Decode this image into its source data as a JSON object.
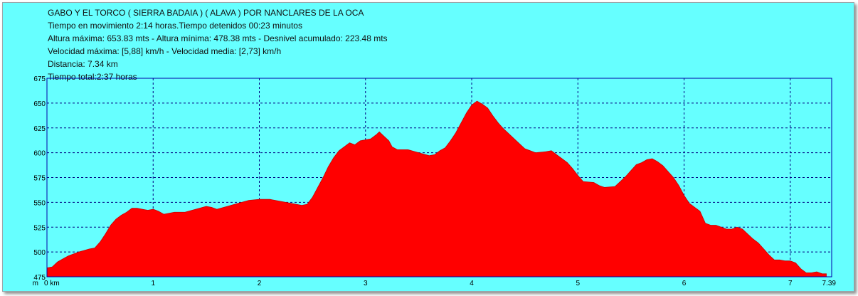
{
  "header": {
    "title": "GABO Y EL TORCO ( SIERRA BADAIA ) ( ALAVA ) POR NANCLARES DE LA OCA",
    "moving_time": "Tiempo en movimiento 2:14 horas.Tiempo detenidos 00:23 minutos",
    "altitude": "Altura máxima: 653.83 mts - Altura mínima: 478.38 mts - Desnivel acumulado: 223.48 mts",
    "speed": "Velocidad máxima: [5,88] km/h - Velocidad media: [2,73] km/h",
    "distance": "Distancia: 7.34 km",
    "total_time": "Tiempo total:2:37 horas"
  },
  "colors": {
    "background": "#66ffff",
    "fill": "#ff0000",
    "grid": "#000080",
    "axis": "#0000aa"
  },
  "chart_data": {
    "type": "area",
    "title": "GABO Y EL TORCO ( SIERRA BADAIA ) ( ALAVA ) POR NANCLARES DE LA OCA",
    "xlabel": "m",
    "ylabel": "",
    "xlim": [
      0,
      7.39
    ],
    "ylim": [
      475,
      675
    ],
    "grid": true,
    "y_ticks": [
      "675",
      "650",
      "625",
      "600",
      "575",
      "550",
      "525",
      "500",
      "475"
    ],
    "x_ticks": [
      {
        "value": 0,
        "label": "0 km"
      },
      {
        "value": 1,
        "label": "1"
      },
      {
        "value": 2,
        "label": "2"
      },
      {
        "value": 3,
        "label": "3"
      },
      {
        "value": 4,
        "label": "4"
      },
      {
        "value": 5,
        "label": "5"
      },
      {
        "value": 6,
        "label": "6"
      },
      {
        "value": 7,
        "label": "7"
      },
      {
        "value": 7.39,
        "label": "7.39"
      }
    ],
    "series": [
      {
        "values": [
          {
            "x": 0.0,
            "y": 484
          },
          {
            "x": 0.05,
            "y": 485
          },
          {
            "x": 0.1,
            "y": 490
          },
          {
            "x": 0.15,
            "y": 493
          },
          {
            "x": 0.2,
            "y": 496
          },
          {
            "x": 0.3,
            "y": 500
          },
          {
            "x": 0.4,
            "y": 503
          },
          {
            "x": 0.45,
            "y": 504
          },
          {
            "x": 0.5,
            "y": 510
          },
          {
            "x": 0.55,
            "y": 518
          },
          {
            "x": 0.6,
            "y": 527
          },
          {
            "x": 0.65,
            "y": 533
          },
          {
            "x": 0.7,
            "y": 537
          },
          {
            "x": 0.75,
            "y": 540
          },
          {
            "x": 0.8,
            "y": 544
          },
          {
            "x": 0.85,
            "y": 544
          },
          {
            "x": 0.9,
            "y": 543
          },
          {
            "x": 0.95,
            "y": 542
          },
          {
            "x": 1.0,
            "y": 543
          },
          {
            "x": 1.05,
            "y": 541
          },
          {
            "x": 1.1,
            "y": 538
          },
          {
            "x": 1.2,
            "y": 540
          },
          {
            "x": 1.3,
            "y": 540
          },
          {
            "x": 1.4,
            "y": 543
          },
          {
            "x": 1.5,
            "y": 546
          },
          {
            "x": 1.55,
            "y": 545
          },
          {
            "x": 1.6,
            "y": 543
          },
          {
            "x": 1.7,
            "y": 546
          },
          {
            "x": 1.8,
            "y": 549
          },
          {
            "x": 1.9,
            "y": 552
          },
          {
            "x": 2.0,
            "y": 553
          },
          {
            "x": 2.1,
            "y": 553
          },
          {
            "x": 2.2,
            "y": 551
          },
          {
            "x": 2.3,
            "y": 549
          },
          {
            "x": 2.4,
            "y": 547
          },
          {
            "x": 2.45,
            "y": 548
          },
          {
            "x": 2.5,
            "y": 555
          },
          {
            "x": 2.55,
            "y": 565
          },
          {
            "x": 2.6,
            "y": 575
          },
          {
            "x": 2.65,
            "y": 586
          },
          {
            "x": 2.7,
            "y": 595
          },
          {
            "x": 2.75,
            "y": 602
          },
          {
            "x": 2.8,
            "y": 606
          },
          {
            "x": 2.85,
            "y": 610
          },
          {
            "x": 2.9,
            "y": 608
          },
          {
            "x": 2.95,
            "y": 612
          },
          {
            "x": 3.0,
            "y": 613
          },
          {
            "x": 3.05,
            "y": 614
          },
          {
            "x": 3.1,
            "y": 618
          },
          {
            "x": 3.13,
            "y": 621
          },
          {
            "x": 3.17,
            "y": 617
          },
          {
            "x": 3.22,
            "y": 612
          },
          {
            "x": 3.25,
            "y": 606
          },
          {
            "x": 3.3,
            "y": 603
          },
          {
            "x": 3.4,
            "y": 603
          },
          {
            "x": 3.5,
            "y": 600
          },
          {
            "x": 3.6,
            "y": 597
          },
          {
            "x": 3.65,
            "y": 598
          },
          {
            "x": 3.7,
            "y": 602
          },
          {
            "x": 3.75,
            "y": 605
          },
          {
            "x": 3.8,
            "y": 612
          },
          {
            "x": 3.85,
            "y": 620
          },
          {
            "x": 3.9,
            "y": 630
          },
          {
            "x": 3.95,
            "y": 640
          },
          {
            "x": 4.0,
            "y": 648
          },
          {
            "x": 4.05,
            "y": 652
          },
          {
            "x": 4.1,
            "y": 649
          },
          {
            "x": 4.15,
            "y": 645
          },
          {
            "x": 4.2,
            "y": 637
          },
          {
            "x": 4.25,
            "y": 630
          },
          {
            "x": 4.3,
            "y": 624
          },
          {
            "x": 4.35,
            "y": 619
          },
          {
            "x": 4.4,
            "y": 614
          },
          {
            "x": 4.45,
            "y": 609
          },
          {
            "x": 4.5,
            "y": 604
          },
          {
            "x": 4.55,
            "y": 602
          },
          {
            "x": 4.6,
            "y": 600
          },
          {
            "x": 4.7,
            "y": 601
          },
          {
            "x": 4.75,
            "y": 602
          },
          {
            "x": 4.8,
            "y": 598
          },
          {
            "x": 4.85,
            "y": 594
          },
          {
            "x": 4.9,
            "y": 590
          },
          {
            "x": 4.95,
            "y": 584
          },
          {
            "x": 5.0,
            "y": 577
          },
          {
            "x": 5.05,
            "y": 571
          },
          {
            "x": 5.15,
            "y": 570
          },
          {
            "x": 5.2,
            "y": 567
          },
          {
            "x": 5.25,
            "y": 565
          },
          {
            "x": 5.35,
            "y": 566
          },
          {
            "x": 5.4,
            "y": 571
          },
          {
            "x": 5.45,
            "y": 576
          },
          {
            "x": 5.5,
            "y": 582
          },
          {
            "x": 5.55,
            "y": 588
          },
          {
            "x": 5.6,
            "y": 590
          },
          {
            "x": 5.65,
            "y": 593
          },
          {
            "x": 5.7,
            "y": 594
          },
          {
            "x": 5.75,
            "y": 591
          },
          {
            "x": 5.8,
            "y": 587
          },
          {
            "x": 5.85,
            "y": 581
          },
          {
            "x": 5.9,
            "y": 575
          },
          {
            "x": 5.95,
            "y": 567
          },
          {
            "x": 6.0,
            "y": 557
          },
          {
            "x": 6.05,
            "y": 549
          },
          {
            "x": 6.1,
            "y": 545
          },
          {
            "x": 6.15,
            "y": 541
          },
          {
            "x": 6.2,
            "y": 529
          },
          {
            "x": 6.25,
            "y": 527
          },
          {
            "x": 6.3,
            "y": 527
          },
          {
            "x": 6.35,
            "y": 525
          },
          {
            "x": 6.4,
            "y": 523
          },
          {
            "x": 6.45,
            "y": 523
          },
          {
            "x": 6.5,
            "y": 525
          },
          {
            "x": 6.55,
            "y": 523
          },
          {
            "x": 6.6,
            "y": 518
          },
          {
            "x": 6.65,
            "y": 513
          },
          {
            "x": 6.7,
            "y": 509
          },
          {
            "x": 6.75,
            "y": 503
          },
          {
            "x": 6.8,
            "y": 497
          },
          {
            "x": 6.85,
            "y": 492
          },
          {
            "x": 6.9,
            "y": 492
          },
          {
            "x": 6.95,
            "y": 491
          },
          {
            "x": 7.0,
            "y": 491
          },
          {
            "x": 7.05,
            "y": 489
          },
          {
            "x": 7.1,
            "y": 483
          },
          {
            "x": 7.15,
            "y": 479
          },
          {
            "x": 7.2,
            "y": 479
          },
          {
            "x": 7.25,
            "y": 480
          },
          {
            "x": 7.3,
            "y": 478
          },
          {
            "x": 7.34,
            "y": 478
          }
        ]
      }
    ]
  }
}
